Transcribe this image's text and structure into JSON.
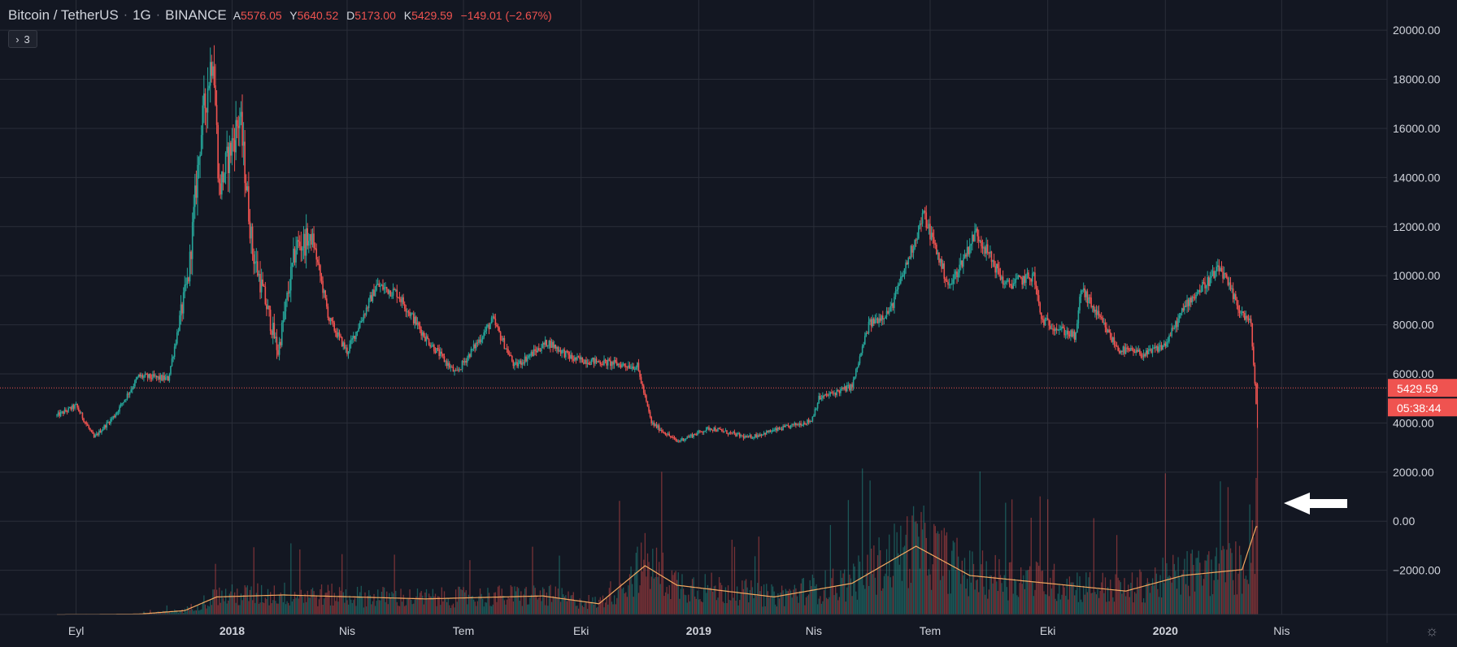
{
  "header": {
    "symbol": "Bitcoin / TetherUS",
    "interval": "1G",
    "exchange": "BINANCE",
    "open_key": "A",
    "open_val": "5576.05",
    "high_key": "Y",
    "high_val": "5640.52",
    "low_key": "D",
    "low_val": "5173.00",
    "close_key": "K",
    "close_val": "5429.59",
    "change": "−149.01 (−2.67%)"
  },
  "indicator_toggle": {
    "chevron": "›",
    "count": "3"
  },
  "price_axis": {
    "ticks": [
      "20000.00",
      "18000.00",
      "16000.00",
      "14000.00",
      "12000.00",
      "10000.00",
      "8000.00",
      "6000.00",
      "4000.00",
      "2000.00",
      "0.00",
      "−2000.00"
    ],
    "tick_values": [
      20000,
      18000,
      16000,
      14000,
      12000,
      10000,
      8000,
      6000,
      4000,
      2000,
      0,
      -2000
    ],
    "last_price_label": "5429.59",
    "countdown_label": "05:38:44"
  },
  "time_axis": {
    "labels": [
      "Eyl",
      "2018",
      "Nis",
      "Tem",
      "Eki",
      "2019",
      "Nis",
      "Tem",
      "Eki",
      "2020",
      "Nis"
    ],
    "bold": [
      false,
      true,
      false,
      false,
      false,
      true,
      false,
      false,
      false,
      true,
      false
    ]
  },
  "colors": {
    "background": "#131722",
    "grid": "#2a2e39",
    "up": "#26a69a",
    "down": "#ef5350",
    "volume_ma": "#f5a960",
    "last_price": "#ef5350",
    "arrow": "#ffffff"
  },
  "icons": {
    "settings": "gear-icon",
    "annotation": "arrow-left-icon"
  },
  "chart_data": {
    "type": "candlestick",
    "symbol": "Bitcoin / TetherUS",
    "interval": "1G",
    "ylim": [
      -3800,
      20700
    ],
    "x_range": [
      "2017-08-17",
      "2020-04-30"
    ],
    "last_price": 5429.59,
    "keypoints": [
      [
        "2017-08-17",
        4300
      ],
      [
        "2017-09-01",
        4700
      ],
      [
        "2017-09-15",
        3400
      ],
      [
        "2017-10-01",
        4300
      ],
      [
        "2017-10-20",
        5900
      ],
      [
        "2017-11-12",
        5800
      ],
      [
        "2017-11-28",
        10000
      ],
      [
        "2017-12-07",
        15500
      ],
      [
        "2017-12-17",
        19300
      ],
      [
        "2017-12-22",
        13500
      ],
      [
        "2018-01-07",
        16500
      ],
      [
        "2018-01-17",
        11000
      ],
      [
        "2018-02-06",
        6900
      ],
      [
        "2018-02-20",
        11200
      ],
      [
        "2018-03-05",
        11500
      ],
      [
        "2018-03-18",
        8200
      ],
      [
        "2018-04-01",
        6900
      ],
      [
        "2018-04-24",
        9600
      ],
      [
        "2018-05-10",
        9300
      ],
      [
        "2018-06-01",
        7500
      ],
      [
        "2018-06-25",
        6000
      ],
      [
        "2018-07-24",
        8200
      ],
      [
        "2018-08-10",
        6300
      ],
      [
        "2018-09-05",
        7300
      ],
      [
        "2018-09-25",
        6600
      ],
      [
        "2018-10-14",
        6500
      ],
      [
        "2018-11-14",
        6300
      ],
      [
        "2018-11-25",
        4000
      ],
      [
        "2018-12-15",
        3250
      ],
      [
        "2019-01-10",
        3800
      ],
      [
        "2019-02-08",
        3400
      ],
      [
        "2019-03-30",
        4100
      ],
      [
        "2019-04-05",
        5000
      ],
      [
        "2019-05-01",
        5500
      ],
      [
        "2019-05-14",
        8000
      ],
      [
        "2019-05-31",
        8600
      ],
      [
        "2019-06-26",
        12500
      ],
      [
        "2019-07-16",
        9500
      ],
      [
        "2019-08-06",
        11800
      ],
      [
        "2019-08-29",
        9600
      ],
      [
        "2019-09-20",
        10000
      ],
      [
        "2019-09-26",
        8200
      ],
      [
        "2019-10-23",
        7500
      ],
      [
        "2019-10-27",
        9500
      ],
      [
        "2019-11-25",
        7000
      ],
      [
        "2019-12-17",
        6800
      ],
      [
        "2020-01-01",
        7200
      ],
      [
        "2020-01-18",
        8900
      ],
      [
        "2020-02-13",
        10300
      ],
      [
        "2020-02-27",
        8700
      ],
      [
        "2020-03-08",
        8000
      ],
      [
        "2020-03-12",
        4800
      ],
      [
        "2020-03-13",
        5576
      ]
    ],
    "volume_scale": "relative",
    "volume_ma_keypoints": [
      [
        "2017-08-17",
        0.0
      ],
      [
        "2017-10-20",
        0.02
      ],
      [
        "2017-11-25",
        0.2
      ],
      [
        "2017-12-20",
        0.9
      ],
      [
        "2018-02-10",
        1.0
      ],
      [
        "2018-06-01",
        0.8
      ],
      [
        "2018-09-01",
        0.95
      ],
      [
        "2018-10-15",
        0.55
      ],
      [
        "2018-11-20",
        2.5
      ],
      [
        "2018-12-15",
        1.5
      ],
      [
        "2019-03-01",
        0.9
      ],
      [
        "2019-05-01",
        1.6
      ],
      [
        "2019-06-20",
        3.5
      ],
      [
        "2019-08-01",
        2.0
      ],
      [
        "2019-10-01",
        1.6
      ],
      [
        "2019-12-01",
        1.2
      ],
      [
        "2020-01-15",
        2.0
      ],
      [
        "2020-03-01",
        2.3
      ],
      [
        "2020-03-12",
        4.5
      ]
    ]
  }
}
